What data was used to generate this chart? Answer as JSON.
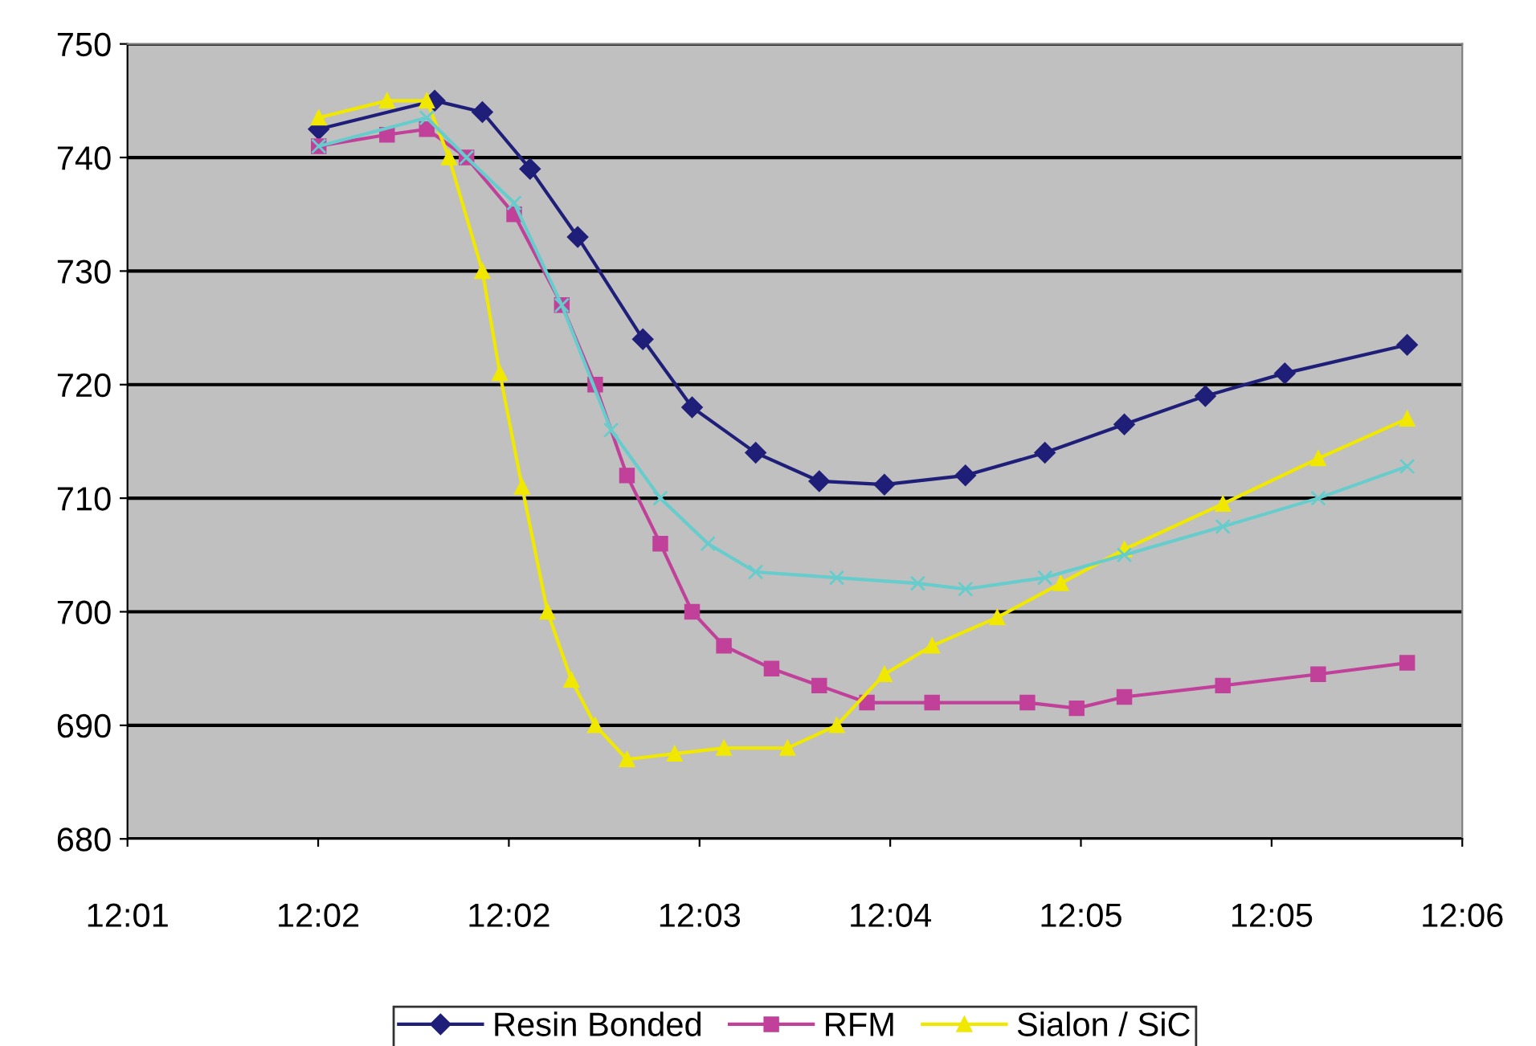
{
  "chart_data": {
    "type": "line",
    "xlim": [
      12.016667,
      12.100667
    ],
    "xticks": [
      {
        "value": 12.016667,
        "label": "12:01"
      },
      {
        "value": 12.028667,
        "label": "12:02"
      },
      {
        "value": 12.040667,
        "label": "12:02"
      },
      {
        "value": 12.052667,
        "label": "12:03"
      },
      {
        "value": 12.064667,
        "label": "12:04"
      },
      {
        "value": 12.076667,
        "label": "12:05"
      },
      {
        "value": 12.088667,
        "label": "12:05"
      },
      {
        "value": 12.100667,
        "label": "12:06"
      }
    ],
    "ylim": [
      680,
      750
    ],
    "yticks": [
      680,
      690,
      700,
      710,
      720,
      730,
      740,
      750
    ],
    "grid": "y",
    "legend": "bottom",
    "series": [
      {
        "name": "Resin Bonded",
        "color": "#1f1f7a",
        "marker": "diamond",
        "x": [
          12.0287,
          12.036,
          12.039,
          12.042,
          12.045,
          12.0491,
          12.0522,
          12.0562,
          12.0602,
          12.0643,
          12.0694,
          12.0744,
          12.0794,
          12.0845,
          12.0895,
          12.0972
        ],
        "values": [
          742.5,
          745,
          744,
          739,
          733,
          724,
          718,
          714,
          711.5,
          711.2,
          712,
          714,
          716.5,
          719,
          721,
          723.5
        ]
      },
      {
        "name": "RFM",
        "color": "#c0409a",
        "marker": "square",
        "x": [
          12.0287,
          12.033,
          12.0355,
          12.038,
          12.041,
          12.044,
          12.0461,
          12.0481,
          12.0502,
          12.0522,
          12.0542,
          12.0572,
          12.0602,
          12.0632,
          12.0673,
          12.0733,
          12.0764,
          12.0794,
          12.0856,
          12.0916,
          12.0972
        ],
        "values": [
          741,
          742,
          742.5,
          740,
          735,
          727,
          720,
          712,
          706,
          700,
          697,
          695,
          693.5,
          692,
          692,
          692,
          691.5,
          692.5,
          693.5,
          694.5,
          695.5
        ]
      },
      {
        "name": "Sialon / SiC",
        "color": "#f0e800",
        "marker": "triangle",
        "x": [
          12.0287,
          12.033,
          12.0355,
          12.0369,
          12.039,
          12.0401,
          12.0415,
          12.0431,
          12.0446,
          12.0461,
          12.0481,
          12.0511,
          12.0542,
          12.0582,
          12.0613,
          12.0643,
          12.0673,
          12.0714,
          12.0754,
          12.0794,
          12.0856,
          12.0916,
          12.0972
        ],
        "values": [
          743.5,
          745,
          745,
          740,
          730,
          721,
          711,
          700,
          694,
          690,
          687,
          687.5,
          688,
          688,
          690,
          694.5,
          697,
          699.5,
          702.5,
          705.5,
          709.5,
          713.5,
          717
        ]
      },
      {
        "color": "#66cccc",
        "marker": "cross",
        "x": [
          12.0287,
          12.0355,
          12.038,
          12.041,
          12.044,
          12.0471,
          12.0502,
          12.0532,
          12.0562,
          12.0613,
          12.0664,
          12.0694,
          12.0744,
          12.0794,
          12.0856,
          12.0916,
          12.0972
        ],
        "values": [
          741,
          743.5,
          740,
          736,
          727,
          716,
          710,
          706,
          703.5,
          703,
          702.5,
          702,
          703,
          705,
          707.5,
          710,
          712.8
        ]
      }
    ]
  }
}
